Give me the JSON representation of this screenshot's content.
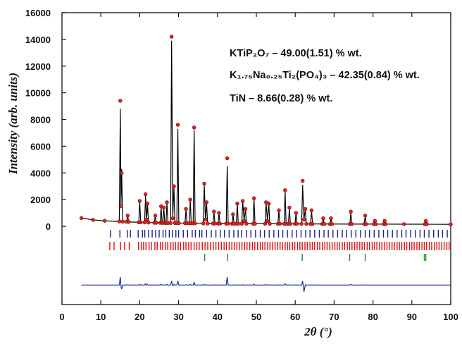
{
  "chart_data": {
    "type": "line",
    "xlabel": "2θ (°)",
    "ylabel": "Intensity (arb. units)",
    "annotations": [
      "KTiP₂O₇ – 49.00(1.51) % wt.",
      "K₁.₇₅Na₀.₂₅Ti₂(PO₄)₃ – 42.35(0.84) % wt.",
      "TiN – 8.66(0.28) % wt."
    ],
    "xlim": [
      0,
      100
    ],
    "xticks": [
      0,
      10,
      20,
      30,
      40,
      50,
      60,
      70,
      80,
      90,
      100
    ],
    "ylim": [
      -5860,
      16000
    ],
    "yticks": [
      0,
      2000,
      4000,
      6000,
      8000,
      10000,
      12000,
      14000,
      16000
    ],
    "x": [
      5,
      8,
      11,
      14.75,
      15,
      15.18,
      15.35,
      15.6,
      16.65,
      16.9,
      17.15,
      19.75,
      20,
      20.25,
      21.25,
      21.5,
      21.75,
      22,
      22.25,
      23.75,
      24,
      24.25,
      25.25,
      25.5,
      25.75,
      25.95,
      26.2,
      26.45,
      26.75,
      27,
      27.25,
      27.95,
      28.2,
      28.5,
      28.8,
      29.05,
      29.55,
      29.8,
      30.05,
      31.65,
      31.9,
      32.15,
      32.75,
      33,
      33.25,
      33.75,
      34,
      34.25,
      36.35,
      36.6,
      36.9,
      37.2,
      37.45,
      38.85,
      39.1,
      39.35,
      40.15,
      40.4,
      40.65,
      42.25,
      42.5,
      42.75,
      43.75,
      44,
      44.25,
      44.85,
      45.1,
      45.35,
      46.25,
      46.5,
      46.85,
      47.2,
      47.45,
      49.15,
      49.4,
      49.65,
      52.25,
      52.5,
      52.85,
      53.2,
      53.45,
      55.55,
      55.8,
      56.05,
      57.15,
      57.4,
      57.65,
      58.25,
      58.5,
      58.75,
      59.95,
      60.2,
      60.45,
      61.65,
      61.9,
      62.25,
      62.6,
      62.85,
      63.95,
      64.2,
      64.45,
      66.95,
      67.2,
      67.45,
      68.95,
      69.2,
      69.45,
      74.05,
      74.3,
      74.55,
      77.75,
      78,
      78.25,
      80.25,
      80.5,
      80.75,
      82.75,
      83,
      83.25,
      88,
      93.35,
      93.6,
      93.85,
      100
    ],
    "series": [
      {
        "style": "markers",
        "color": "#e02424",
        "values": [
          620,
          480,
          410,
          360,
          9400,
          1500,
          4000,
          350,
          340,
          800,
          330,
          300,
          1900,
          300,
          290,
          2400,
          500,
          1700,
          280,
          270,
          800,
          270,
          260,
          1500,
          260,
          260,
          1400,
          255,
          255,
          1800,
          250,
          250,
          14200,
          600,
          3000,
          245,
          245,
          7600,
          240,
          235,
          1300,
          230,
          230,
          2000,
          225,
          225,
          7400,
          220,
          215,
          3200,
          500,
          1800,
          210,
          205,
          1100,
          205,
          200,
          1000,
          200,
          200,
          5100,
          200,
          198,
          900,
          198,
          197,
          1700,
          197,
          196,
          1900,
          400,
          1300,
          195,
          193,
          2100,
          193,
          190,
          1800,
          400,
          1700,
          189,
          186,
          1200,
          186,
          184,
          2700,
          184,
          183,
          1400,
          183,
          180,
          1000,
          180,
          179,
          3400,
          500,
          1300,
          178,
          177,
          1200,
          177,
          173,
          600,
          173,
          171,
          600,
          171,
          168,
          1100,
          168,
          165,
          800,
          165,
          164,
          400,
          164,
          163,
          400,
          163,
          160,
          157,
          400,
          157,
          150
        ]
      },
      {
        "style": "line",
        "color": "#000000",
        "values": [
          620,
          480,
          410,
          360,
          8800,
          1600,
          4300,
          350,
          340,
          780,
          330,
          300,
          1850,
          300,
          290,
          2300,
          520,
          1650,
          280,
          270,
          790,
          270,
          260,
          1450,
          260,
          260,
          1380,
          255,
          255,
          1750,
          250,
          250,
          13900,
          650,
          2950,
          245,
          245,
          7300,
          240,
          235,
          1280,
          230,
          230,
          1950,
          225,
          225,
          7200,
          220,
          215,
          3150,
          520,
          1780,
          210,
          205,
          1080,
          205,
          200,
          990,
          200,
          200,
          4500,
          200,
          198,
          890,
          198,
          197,
          1680,
          197,
          196,
          1870,
          420,
          1290,
          195,
          193,
          2050,
          193,
          190,
          1760,
          410,
          1680,
          189,
          186,
          1190,
          186,
          184,
          2600,
          184,
          183,
          1380,
          183,
          180,
          990,
          180,
          179,
          3100,
          520,
          1290,
          178,
          177,
          1190,
          177,
          173,
          600,
          173,
          171,
          600,
          171,
          168,
          1050,
          168,
          165,
          780,
          165,
          164,
          400,
          164,
          163,
          400,
          163,
          160,
          157,
          400,
          157,
          150
        ]
      },
      {
        "style": "line",
        "color": "#1a2aa8",
        "values": [
          -4400,
          -4400,
          -4400,
          -4400,
          -3800,
          -4500,
          -4700,
          -4400,
          -4400,
          -4380,
          -4400,
          -4400,
          -4350,
          -4400,
          -4400,
          -4300,
          -4420,
          -4350,
          -4400,
          -4400,
          -4390,
          -4400,
          -4400,
          -4350,
          -4400,
          -4400,
          -4380,
          -4400,
          -4400,
          -4350,
          -4400,
          -4400,
          -4100,
          -4450,
          -4350,
          -4400,
          -4400,
          -4100,
          -4400,
          -4400,
          -4380,
          -4400,
          -4400,
          -4350,
          -4400,
          -4400,
          -4200,
          -4400,
          -4400,
          -4350,
          -4420,
          -4380,
          -4400,
          -4400,
          -4380,
          -4400,
          -4400,
          -4390,
          -4400,
          -4400,
          -3800,
          -4400,
          -4400,
          -4390,
          -4400,
          -4400,
          -4380,
          -4400,
          -4400,
          -4370,
          -4420,
          -4390,
          -4400,
          -4400,
          -4350,
          -4400,
          -4400,
          -4360,
          -4410,
          -4380,
          -4400,
          -4400,
          -4390,
          -4400,
          -4400,
          -4300,
          -4400,
          -4400,
          -4380,
          -4400,
          -4400,
          -4390,
          -4400,
          -4400,
          -4100,
          -4900,
          -4390,
          -4400,
          -4400,
          -4390,
          -4400,
          -4400,
          -4400,
          -4400,
          -4400,
          -4400,
          -4400,
          -4400,
          -4350,
          -4400,
          -4400,
          -4380,
          -4400,
          -4400,
          -4400,
          -4400,
          -4400,
          -4400,
          -4400,
          -4400,
          -4400,
          -4400,
          -4400,
          -4400
        ]
      }
    ],
    "phase_ticks": [
      {
        "color": "#1a237e",
        "values": [
          12.5,
          14.9,
          16.8,
          17.6,
          19.6,
          20.7,
          21.3,
          22.3,
          23.2,
          24.1,
          25.0,
          26.0,
          26.7,
          27.6,
          28.4,
          29.3,
          30.0,
          31.2,
          32.3,
          33.5,
          34.3,
          35.4,
          36.0,
          37.2,
          38.4,
          39.6,
          40.7,
          41.8,
          43.0,
          44.2,
          45.3,
          46.2,
          47.5,
          48.6,
          49.8,
          51.0,
          52.1,
          53.3,
          54.5,
          55.7,
          56.8,
          58.0,
          59.2,
          60.3,
          61.5,
          62.7,
          63.8,
          65.0,
          66.2,
          67.4,
          68.5,
          69.7,
          70.9,
          72.1,
          73.2,
          74.4,
          75.6,
          76.8,
          78.0,
          79.1,
          80.3,
          81.5,
          82.7,
          83.8,
          85.0,
          86.2,
          87.4,
          88.5,
          89.7,
          90.9,
          92.1,
          93.2,
          94.4,
          95.6,
          96.8,
          97.9,
          99.1
        ]
      },
      {
        "color": "#e01010",
        "values": [
          12.3,
          13.4,
          15.1,
          16.1,
          17.3,
          19.7,
          20.4,
          21.0,
          21.6,
          22.4,
          23.0,
          23.9,
          24.5,
          25.3,
          25.9,
          26.6,
          27.2,
          28.0,
          28.6,
          29.2,
          29.9,
          30.5,
          31.3,
          31.9,
          32.6,
          33.2,
          34.0,
          34.7,
          35.3,
          36.1,
          36.8,
          37.5,
          38.2,
          38.9,
          39.6,
          40.3,
          41.0,
          41.7,
          42.3,
          43.0,
          43.7,
          44.4,
          45.0,
          45.6,
          46.3,
          47.0,
          47.6,
          48.3,
          49.0,
          49.6,
          50.3,
          51.0,
          51.6,
          52.2,
          52.9,
          53.5,
          54.2,
          54.8,
          55.4,
          56.1,
          56.7,
          57.4,
          58.0,
          58.6,
          59.3,
          59.9,
          60.6,
          61.2,
          61.8,
          62.5,
          63.1,
          63.8,
          64.4,
          65.0,
          65.7,
          66.3,
          67.0,
          67.6,
          68.2,
          68.9,
          69.5,
          70.2,
          70.8,
          71.4,
          72.1,
          72.7,
          73.4,
          74.0,
          74.6,
          75.3,
          75.9,
          76.6,
          77.2,
          77.8,
          78.5,
          79.1,
          79.8,
          80.4,
          81.0,
          81.7,
          82.3,
          83.0,
          83.6,
          84.2,
          84.9,
          85.5,
          86.2,
          86.8,
          87.4,
          88.1,
          88.7,
          89.4,
          90.0,
          90.6,
          91.3,
          91.9,
          92.6,
          93.2,
          93.8,
          94.5,
          95.1,
          95.8,
          96.4,
          97.0,
          97.7,
          98.3,
          99.0,
          99.6
        ]
      },
      {
        "color": "#1e8c1e",
        "values": [
          36.7,
          42.6,
          61.8,
          74.0,
          78.0,
          93.2,
          93.6
        ]
      }
    ]
  }
}
